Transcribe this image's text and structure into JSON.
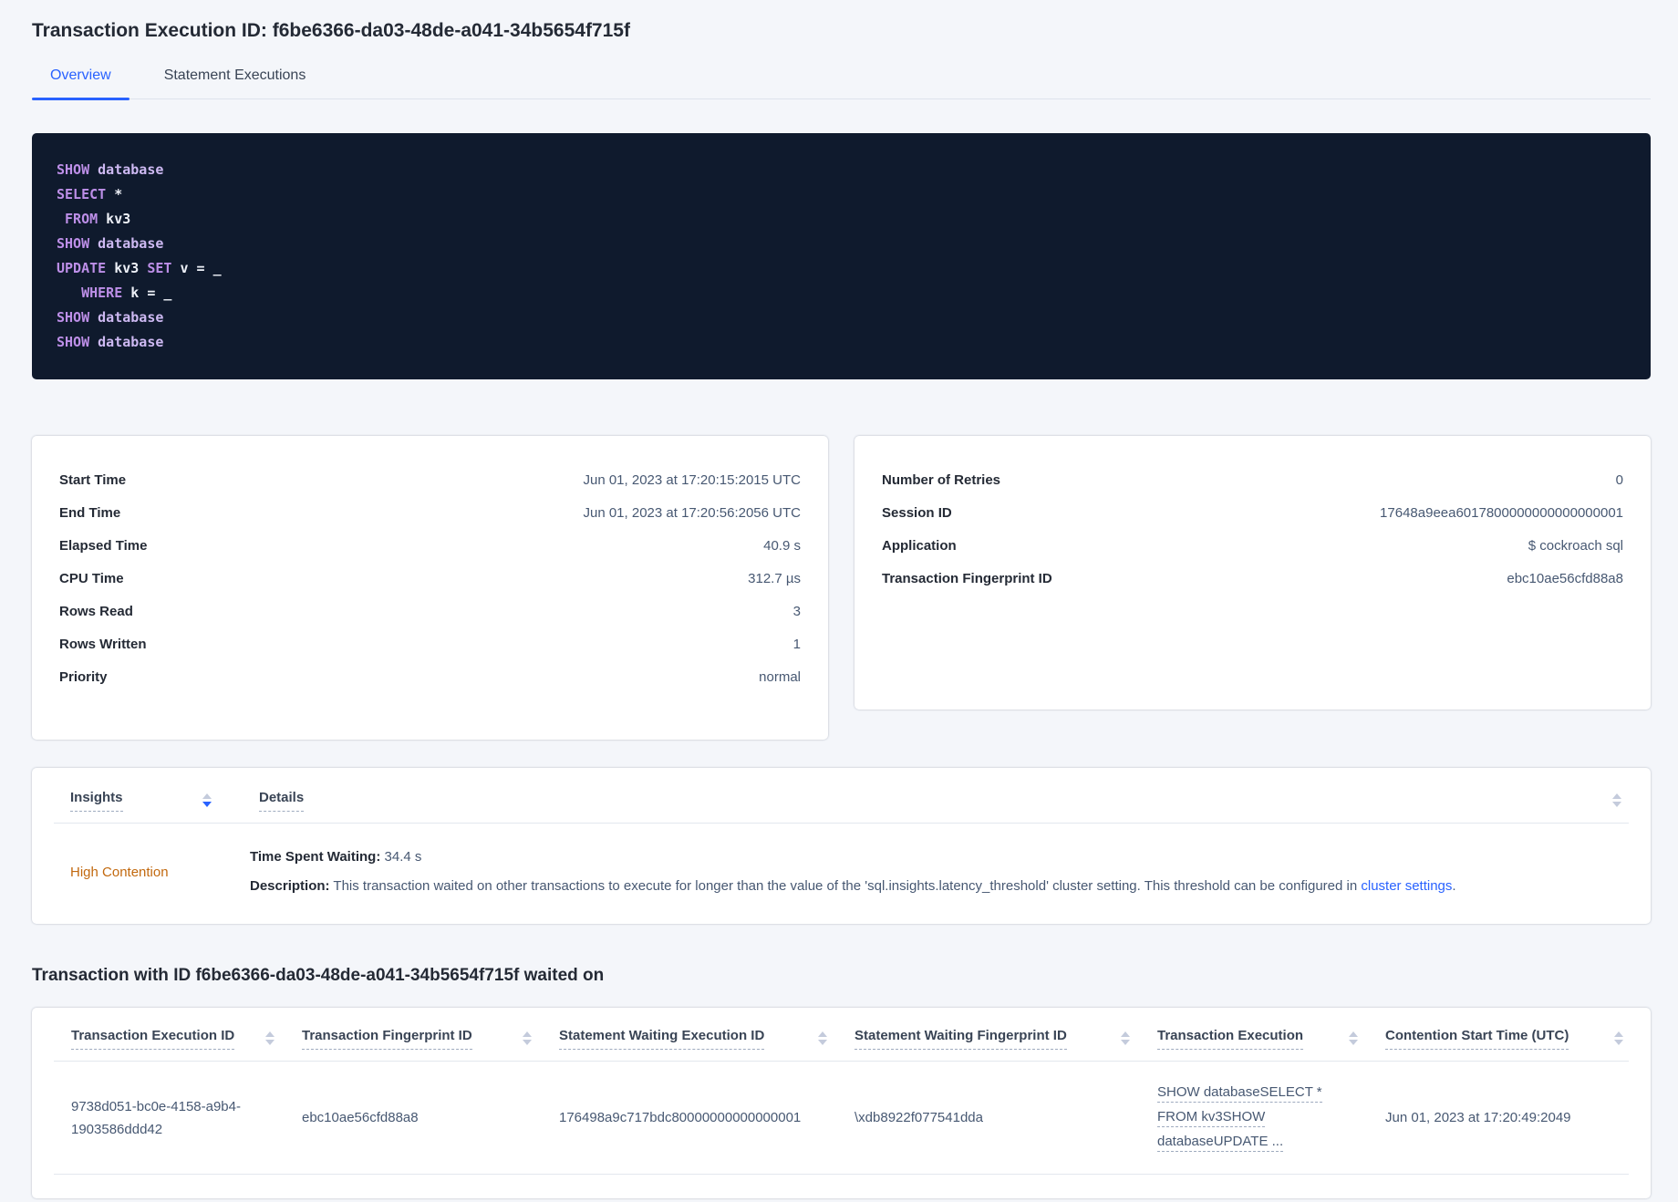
{
  "title": "Transaction Execution ID: f6be6366-da03-48de-a041-34b5654f715f",
  "tabs": {
    "overview": "Overview",
    "statements": "Statement Executions"
  },
  "sql": {
    "lines": [
      {
        "tokens": [
          {
            "text": "SHOW",
            "type": "kw"
          },
          {
            "text": " ",
            "type": "pl"
          },
          {
            "text": "database",
            "type": "id"
          }
        ]
      },
      {
        "tokens": [
          {
            "text": "SELECT",
            "type": "kw"
          },
          {
            "text": " *",
            "type": "pl"
          }
        ]
      },
      {
        "tokens": [
          {
            "text": " ",
            "type": "pl"
          },
          {
            "text": "FROM",
            "type": "kw"
          },
          {
            "text": " kv3",
            "type": "pl"
          }
        ]
      },
      {
        "tokens": [
          {
            "text": "SHOW",
            "type": "kw"
          },
          {
            "text": " ",
            "type": "pl"
          },
          {
            "text": "database",
            "type": "id"
          }
        ]
      },
      {
        "tokens": [
          {
            "text": "UPDATE",
            "type": "kw"
          },
          {
            "text": " kv3 ",
            "type": "pl"
          },
          {
            "text": "SET",
            "type": "kw"
          },
          {
            "text": " v = _",
            "type": "pl"
          }
        ]
      },
      {
        "tokens": [
          {
            "text": "   ",
            "type": "pl"
          },
          {
            "text": "WHERE",
            "type": "kw"
          },
          {
            "text": " k = _",
            "type": "pl"
          }
        ]
      },
      {
        "tokens": [
          {
            "text": "SHOW",
            "type": "kw"
          },
          {
            "text": " ",
            "type": "pl"
          },
          {
            "text": "database",
            "type": "id"
          }
        ]
      },
      {
        "tokens": [
          {
            "text": "SHOW",
            "type": "kw"
          },
          {
            "text": " ",
            "type": "pl"
          },
          {
            "text": "database",
            "type": "id"
          }
        ]
      }
    ]
  },
  "summary_left": {
    "rows": [
      {
        "label": "Start Time",
        "value": "Jun 01, 2023 at 17:20:15:2015 UTC"
      },
      {
        "label": "End Time",
        "value": "Jun 01, 2023 at 17:20:56:2056 UTC"
      },
      {
        "label": "Elapsed Time",
        "value": "40.9 s"
      },
      {
        "label": "CPU Time",
        "value": "312.7 µs"
      },
      {
        "label": "Rows Read",
        "value": "3"
      },
      {
        "label": "Rows Written",
        "value": "1"
      },
      {
        "label": "Priority",
        "value": "normal"
      }
    ]
  },
  "summary_right": {
    "rows": [
      {
        "label": "Number of Retries",
        "value": "0"
      },
      {
        "label": "Session ID",
        "value": "17648a9eea6017800000000000000001"
      },
      {
        "label": "Application",
        "value": "$ cockroach sql"
      },
      {
        "label": "Transaction Fingerprint ID",
        "value": "ebc10ae56cfd88a8"
      }
    ]
  },
  "insights": {
    "insights_label": "Insights",
    "details_label": "Details",
    "row": {
      "insight": "High Contention",
      "waiting_label": "Time Spent Waiting:",
      "waiting_value": " 34.4 s",
      "description_label": "Description:",
      "description_text": " This transaction waited on other transactions to execute for longer than the value of the 'sql.insights.latency_threshold' cluster setting. This threshold can be configured in ",
      "description_link": "cluster settings",
      "description_suffix": "."
    }
  },
  "waited_on": {
    "heading": "Transaction with ID f6be6366-da03-48de-a041-34b5654f715f waited on",
    "columns": [
      "Transaction Execution ID",
      "Transaction Fingerprint ID",
      "Statement Waiting Execution ID",
      "Statement Waiting Fingerprint ID",
      "Transaction Execution",
      "Contention Start Time (UTC)"
    ],
    "row": {
      "transaction_execution_id": "9738d051-bc0e-4158-a9b4-1903586ddd42",
      "transaction_fingerprint_id": "ebc10ae56cfd88a8",
      "statement_waiting_execution_id": "176498a9c717bdc80000000000000001",
      "statement_waiting_fingerprint_id": "\\xdb8922f077541dda",
      "transaction_execution_lines": [
        "SHOW databaseSELECT *",
        "FROM kv3SHOW",
        "databaseUPDATE ..."
      ],
      "contention_start_time": "Jun 01, 2023 at 17:20:49:2049"
    }
  },
  "colors": {
    "accent_blue": "#2962ff",
    "high_contention_orange": "#c2690f",
    "code_background": "#0f1a2d",
    "code_keyword": "#bd8fe8",
    "code_identifier": "#cdb9f2",
    "code_plain": "#eef1f8"
  }
}
